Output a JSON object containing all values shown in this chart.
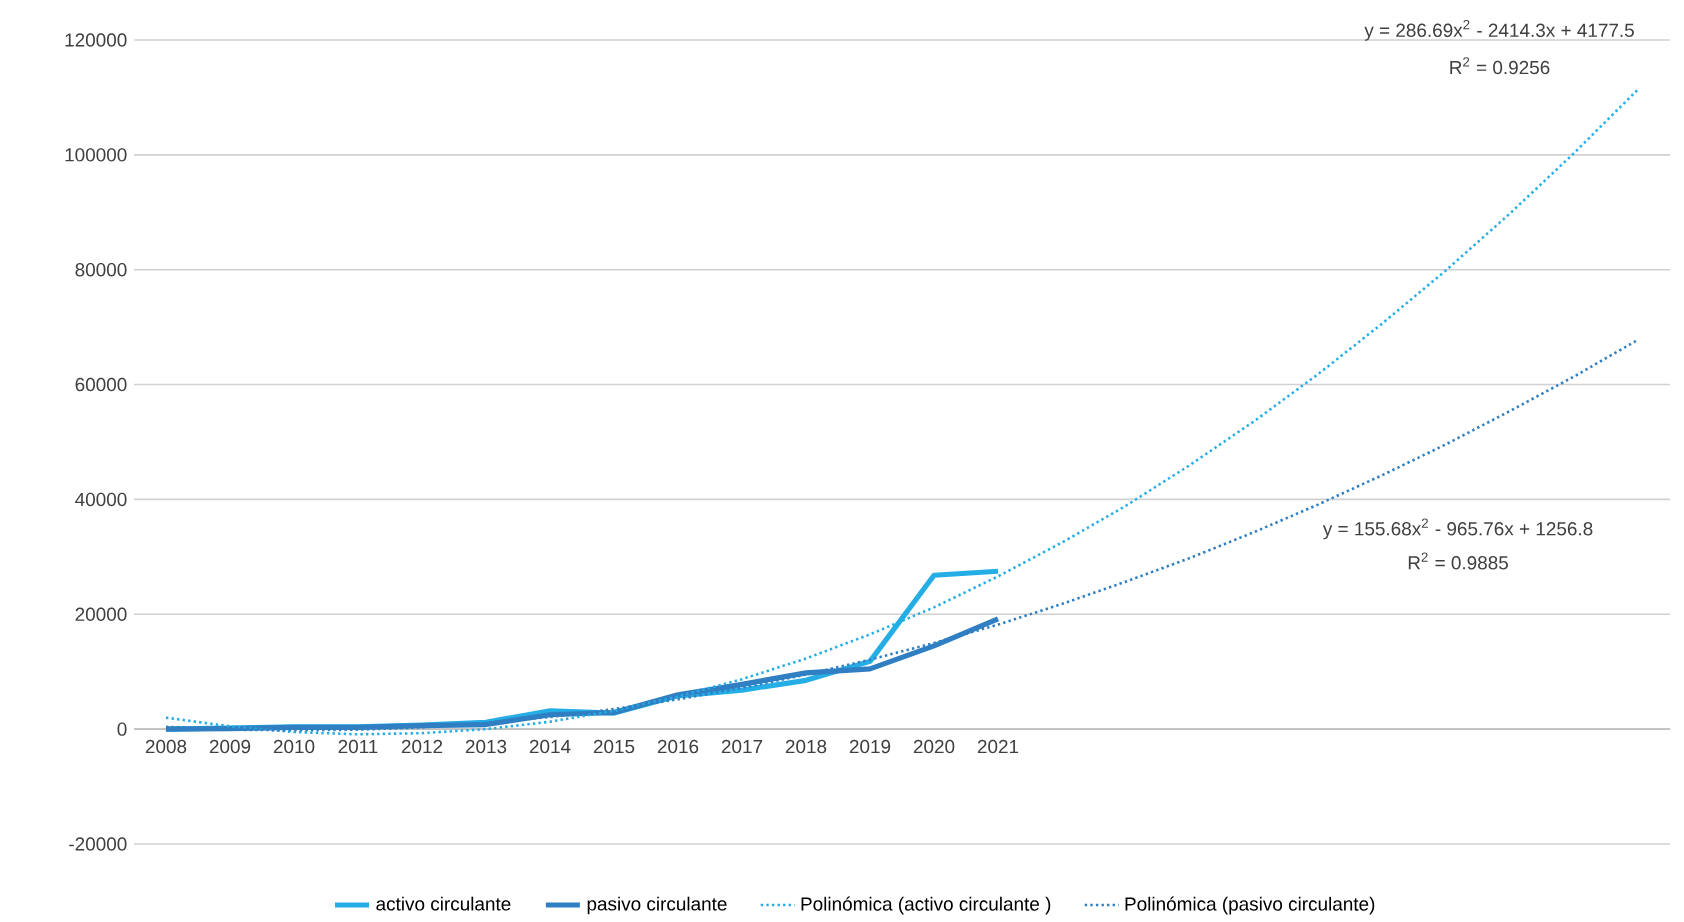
{
  "chart_data": {
    "type": "line",
    "categories": [
      "2008",
      "2009",
      "2010",
      "2011",
      "2012",
      "2013",
      "2014",
      "2015",
      "2016",
      "2017",
      "2018",
      "2019",
      "2020",
      "2021",
      null,
      null,
      null,
      null,
      null,
      null,
      null,
      null,
      null,
      null
    ],
    "ylim": [
      -20000,
      120000
    ],
    "yticks": [
      -20000,
      0,
      20000,
      40000,
      60000,
      80000,
      100000,
      120000
    ],
    "grid": "y",
    "legend": "bottom",
    "series": [
      {
        "name": "activo circulante",
        "color": "#25aee6",
        "line_style": "solid",
        "values": [
          0,
          200,
          400,
          400,
          700,
          1200,
          3200,
          2800,
          5800,
          6800,
          8500,
          11800,
          26800,
          27500,
          null,
          null,
          null,
          null,
          null,
          null,
          null,
          null,
          null,
          null
        ]
      },
      {
        "name": "pasivo circulante",
        "color": "#2f7fc2",
        "line_style": "solid",
        "values": [
          0,
          100,
          300,
          300,
          600,
          800,
          2500,
          2900,
          6000,
          7800,
          9800,
          10500,
          14500,
          19200,
          null,
          null,
          null,
          null,
          null,
          null,
          null,
          null,
          null,
          null
        ]
      },
      {
        "name": "Polinómica (activo circulante )",
        "color": "#25aee6",
        "line_style": "dotted",
        "values": [
          2000,
          500,
          -500,
          -900,
          -700,
          0,
          1300,
          3200,
          5700,
          8700,
          12300,
          16500,
          21200,
          26600,
          32500,
          38900,
          46000,
          53600,
          61800,
          70600,
          79900,
          89800,
          100300,
          111400
        ]
      },
      {
        "name": "Polinómica (pasivo circulante)",
        "color": "#2f7fc2",
        "line_style": "dotted",
        "values": [
          400,
          -100,
          -200,
          -100,
          300,
          1100,
          2100,
          3500,
          5200,
          7200,
          9500,
          12100,
          15000,
          18200,
          21800,
          25700,
          29800,
          34300,
          39100,
          44200,
          49600,
          55400,
          61400,
          67800
        ]
      }
    ],
    "annotations": [
      "y = 286.69x$^{2}$ - 2414.3x + 4177.5",
      "R$^{2}$ = 0.9256",
      "y = 155.68x$^{2}$ - 965.76x + 1256.8",
      "R$^{2}$ = 0.9885"
    ]
  }
}
